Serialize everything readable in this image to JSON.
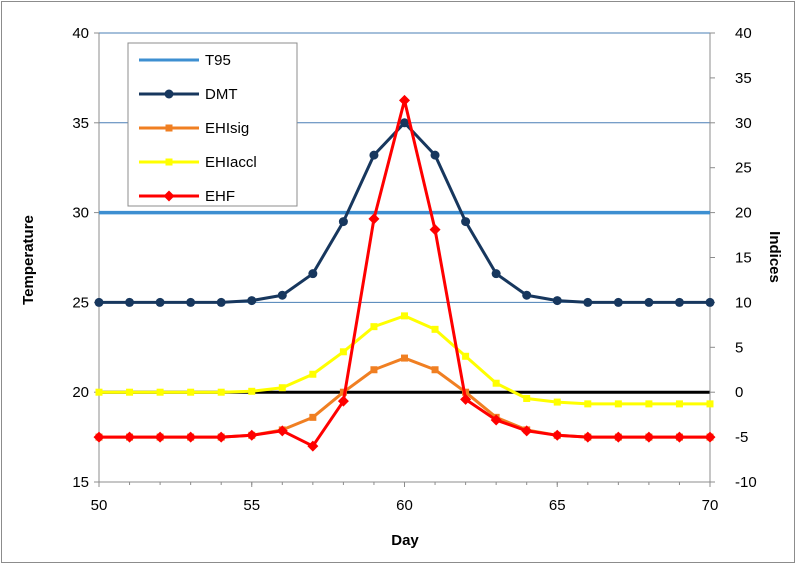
{
  "chart_data": {
    "type": "line",
    "title": "",
    "xlabel": "Day",
    "ylabel": "Temperature",
    "y2label": "Indices",
    "xlim": [
      50,
      70
    ],
    "ylim": [
      15,
      40
    ],
    "y2lim": [
      -10,
      40
    ],
    "x_ticks": [
      "50",
      "55",
      "60",
      "65",
      "70"
    ],
    "y_ticks": [
      "15",
      "20",
      "25",
      "30",
      "35",
      "40"
    ],
    "y2_ticks": [
      "-10",
      "-5",
      "0",
      "5",
      "10",
      "15",
      "20",
      "25",
      "30",
      "35",
      "40"
    ],
    "grid": true,
    "legend_position": "top-left",
    "x": [
      50,
      51,
      52,
      53,
      54,
      55,
      56,
      57,
      58,
      59,
      60,
      61,
      62,
      63,
      64,
      65,
      66,
      67,
      68,
      69,
      70
    ],
    "series": [
      {
        "name": "T95",
        "axis": "left",
        "color": "#3d8fd1",
        "marker": "none",
        "values": [
          30,
          30,
          30,
          30,
          30,
          30,
          30,
          30,
          30,
          30,
          30,
          30,
          30,
          30,
          30,
          30,
          30,
          30,
          30,
          30,
          30
        ]
      },
      {
        "name": "DMT",
        "axis": "left",
        "color": "#17375e",
        "marker": "circle",
        "values": [
          25,
          25,
          25,
          25,
          25,
          25.1,
          25.4,
          26.6,
          29.5,
          33.2,
          35,
          33.2,
          29.5,
          26.6,
          25.4,
          25.1,
          25,
          25,
          25,
          25,
          25
        ]
      },
      {
        "name": "EHIsig",
        "axis": "right",
        "color": "#f07f22",
        "marker": "square",
        "values": [
          -5,
          -5,
          -5,
          -5,
          -5,
          -4.8,
          -4.2,
          -2.8,
          0,
          2.5,
          3.8,
          2.5,
          0,
          -2.8,
          -4.2,
          -4.8,
          -5,
          -5,
          -5,
          -5,
          -5
        ]
      },
      {
        "name": "EHIaccl",
        "axis": "right",
        "color": "#ffff00",
        "marker": "square",
        "values": [
          0,
          0,
          0,
          0,
          0,
          0.1,
          0.5,
          2,
          4.5,
          7.3,
          8.5,
          7,
          4,
          1,
          -0.7,
          -1.1,
          -1.3,
          -1.3,
          -1.3,
          -1.3,
          -1.3
        ]
      },
      {
        "name": "EHF",
        "axis": "right",
        "color": "#ff0000",
        "marker": "diamond",
        "values": [
          -5,
          -5,
          -5,
          -5,
          -5,
          -4.8,
          -4.3,
          -6,
          -1,
          19.3,
          32.5,
          18.1,
          -0.8,
          -3.1,
          -4.3,
          -4.8,
          -5,
          -5,
          -5,
          -5,
          -5
        ]
      }
    ],
    "reference_line": {
      "axis": "right",
      "value": 0,
      "color": "#000000"
    }
  }
}
